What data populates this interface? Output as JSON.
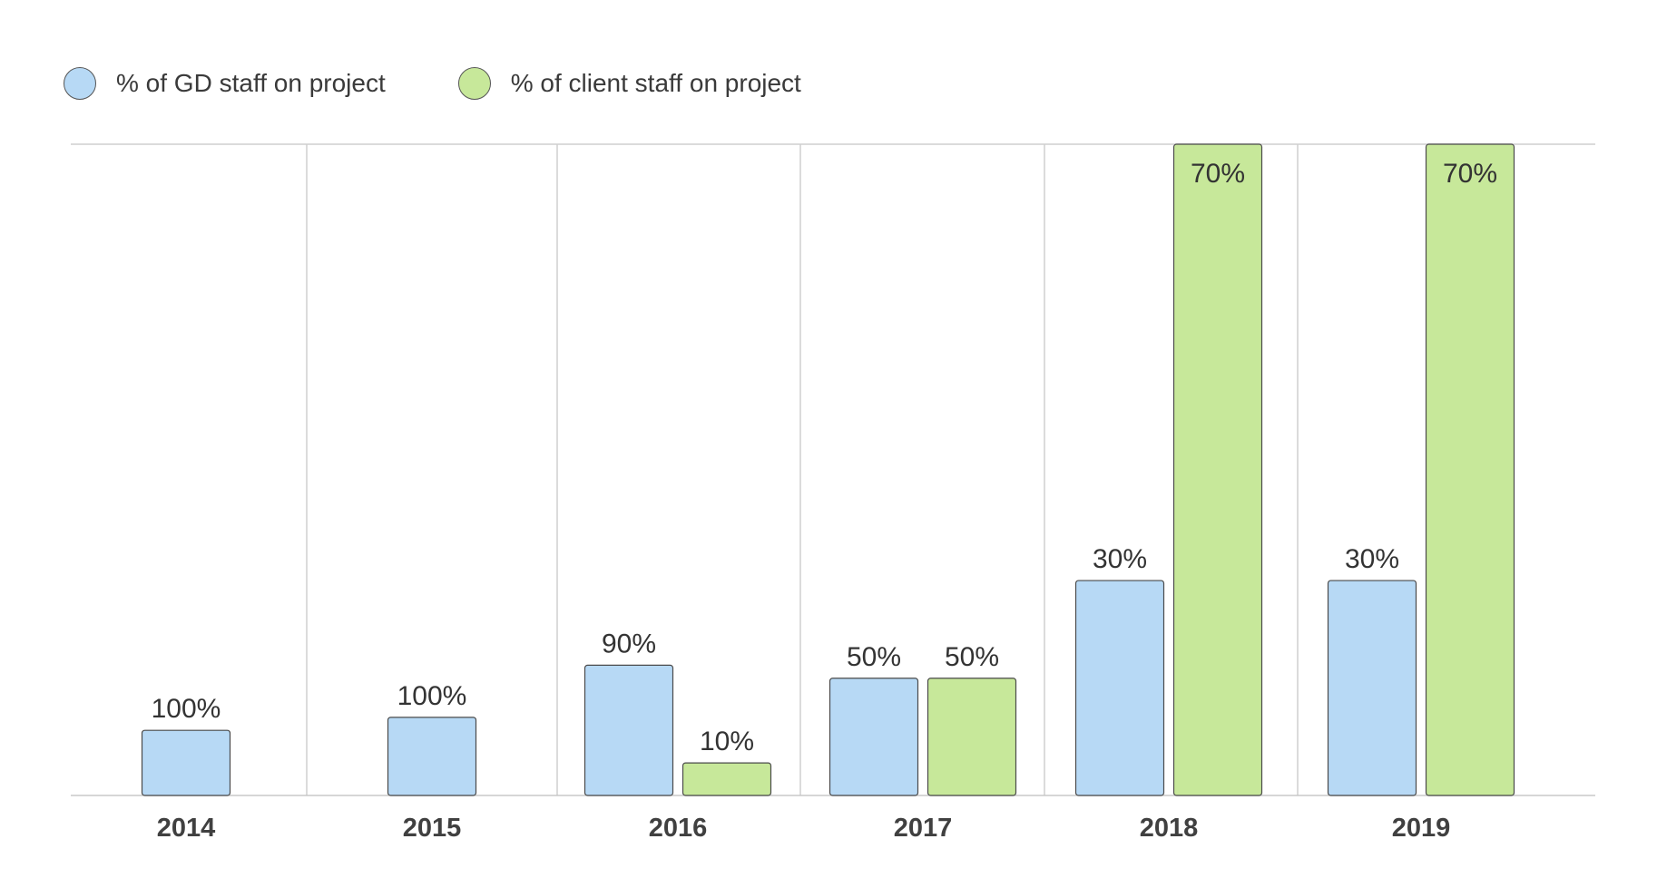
{
  "chart_data": {
    "type": "bar",
    "title": "",
    "xlabel": "",
    "ylabel": "",
    "categories": [
      "2014",
      "2015",
      "2016",
      "2017",
      "2018",
      "2019"
    ],
    "series": [
      {
        "name": "% of GD staff on project",
        "color": "#b7d9f5",
        "values": [
          100,
          100,
          90,
          50,
          30,
          30
        ],
        "labels": [
          "100%",
          "100%",
          "90%",
          "50%",
          "30%",
          "30%"
        ],
        "visual_heights": [
          10,
          12,
          20,
          18,
          33,
          33
        ]
      },
      {
        "name": "% of client staff on project",
        "color": "#c7e89a",
        "values": [
          null,
          null,
          10,
          50,
          70,
          70
        ],
        "labels": [
          null,
          null,
          "10%",
          "50%",
          "70%",
          "70%"
        ],
        "visual_heights": [
          0,
          0,
          5,
          18,
          100,
          100
        ]
      }
    ],
    "ylim": [
      0,
      100
    ],
    "grid": true,
    "legend_position": "top-left"
  }
}
